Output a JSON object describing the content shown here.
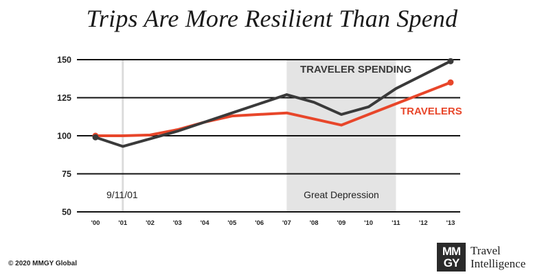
{
  "title": "Trips Are More Resilient Than Spend",
  "copyright": "© 2020 MMGY Global",
  "logo": {
    "mark_line1": "MM",
    "mark_line2": "GY",
    "text_line1": "Travel",
    "text_line2": "Intelligence"
  },
  "chart_data": {
    "type": "line",
    "categories": [
      "'00",
      "'01",
      "'02",
      "'03",
      "'04",
      "'05",
      "'06",
      "'07",
      "'08",
      "'09",
      "'10",
      "'11",
      "'12",
      "'13"
    ],
    "y_ticks": [
      50,
      75,
      100,
      125,
      150
    ],
    "ylim": [
      50,
      150
    ],
    "grid": true,
    "series": [
      {
        "name": "TRAVELER SPENDING",
        "color": "#3a3a3a",
        "values": [
          99,
          93,
          98,
          103,
          109,
          115,
          121,
          127,
          122,
          114,
          119,
          131,
          140,
          149
        ]
      },
      {
        "name": "TRAVELERS",
        "color": "#e8462a",
        "values": [
          100,
          100,
          100.5,
          104,
          109,
          113,
          114,
          115,
          111,
          107,
          114,
          121,
          128,
          135
        ]
      }
    ],
    "annotations": [
      {
        "label": "9/11/01",
        "type": "line",
        "at": "'01"
      },
      {
        "label": "Great Depression",
        "type": "band",
        "from": "'07",
        "to": "'11"
      }
    ]
  }
}
